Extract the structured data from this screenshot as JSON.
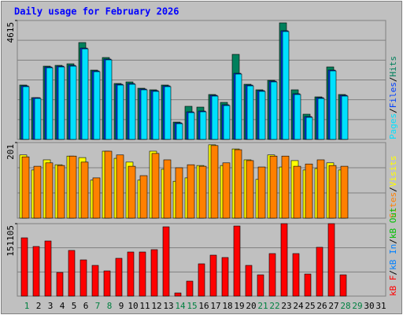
{
  "chart_data": [
    {
      "type": "bar",
      "title": "Daily usage for February 2026",
      "title_color": "#0000ff",
      "categories": [
        "1",
        "2",
        "3",
        "4",
        "5",
        "6",
        "7",
        "8",
        "9",
        "10",
        "11",
        "12",
        "13",
        "14",
        "15",
        "16",
        "17",
        "18",
        "19",
        "20",
        "21",
        "22",
        "23",
        "24",
        "25",
        "26",
        "27",
        "28",
        "29",
        "30",
        "31"
      ],
      "category_colors": [
        "#008040",
        "#000000",
        "#000000",
        "#000000",
        "#000000",
        "#000000",
        "#008040",
        "#008040",
        "#000000",
        "#000000",
        "#000000",
        "#000000",
        "#000000",
        "#008040",
        "#008040",
        "#000000",
        "#000000",
        "#000000",
        "#000000",
        "#000000",
        "#008040",
        "#008040",
        "#000000",
        "#000000",
        "#000000",
        "#000000",
        "#000000",
        "#008040",
        "#008040",
        "#000000",
        "#000000"
      ],
      "legend_separator": "/",
      "ylim": [
        0,
        4615
      ],
      "yticks": [
        4615
      ],
      "grid_divisions": 6,
      "series": [
        {
          "name": "Hits",
          "color": "#00805c",
          "values": [
            2109,
            1620,
            2842,
            2873,
            2934,
            3759,
            2689,
            3178,
            2170,
            2231,
            1986,
            1925,
            2109,
            672,
            1284,
            1253,
            1742,
            1436,
            3300,
            2139,
            1925,
            2292,
            4523,
            1925,
            978,
            1650,
            2812,
            1742,
            null,
            null,
            null
          ]
        },
        {
          "name": "Files",
          "color": "#0040ff",
          "values": [
            2078,
            1619,
            2811,
            2842,
            2872,
            3544,
            2658,
            3117,
            2139,
            2169,
            1955,
            1894,
            2078,
            641,
            1069,
            1100,
            1711,
            1344,
            2566,
            2108,
            1894,
            2261,
            4217,
            1772,
            886,
            1619,
            2689,
            1711,
            null,
            null,
            null
          ]
        },
        {
          "name": "Pages",
          "color": "#00e0ff",
          "values": [
            2048,
            1589,
            2781,
            2812,
            2842,
            3514,
            2628,
            3087,
            2109,
            2139,
            1925,
            1864,
            2048,
            611,
            1039,
            1070,
            1681,
            1314,
            2536,
            2078,
            1864,
            2231,
            4187,
            1742,
            856,
            1589,
            2659,
            1681,
            null,
            null,
            null
          ]
        }
      ]
    },
    {
      "type": "bar",
      "ylim": [
        0,
        201
      ],
      "yticks": [
        201
      ],
      "grid_divisions": 3,
      "series": [
        {
          "name": "Visits",
          "color": "#ffff00",
          "values": [
            168,
            128,
            155,
            142,
            165,
            161,
            101,
            178,
            159,
            149,
            101,
            178,
            130,
            98,
            107,
            140,
            195,
            140,
            184,
            155,
            103,
            168,
            136,
            153,
            128,
            132,
            147,
            128,
            null,
            null,
            null
          ]
        },
        {
          "name": "Sites",
          "color": "#ff8000",
          "values": [
            163,
            138,
            147,
            140,
            165,
            149,
            107,
            178,
            168,
            138,
            113,
            172,
            155,
            134,
            142,
            138,
            193,
            147,
            182,
            153,
            136,
            165,
            165,
            138,
            144,
            155,
            140,
            138,
            null,
            null,
            null
          ]
        }
      ]
    },
    {
      "type": "bar",
      "ylim": [
        0,
        151105
      ],
      "yticks": [
        151105
      ],
      "grid_divisions": 3,
      "series": [
        {
          "name": "kB F",
          "color": "#ff0000",
          "values": [
            121538,
            103471,
            114968,
            49273,
            95261,
            75553,
            64055,
            52558,
            78836,
            91976,
            91976,
            96904,
            144533,
            6570,
            31206,
            67340,
            85407,
            80480,
            146176,
            64055,
            44346,
            88692,
            151105,
            88692,
            45989,
            101830,
            151105,
            44346,
            null,
            null,
            null
          ]
        }
      ],
      "legend_only": [
        {
          "name": "kB In",
          "color": "#0080ff"
        },
        {
          "name": "kB Out",
          "color": "#00c000"
        }
      ]
    }
  ]
}
